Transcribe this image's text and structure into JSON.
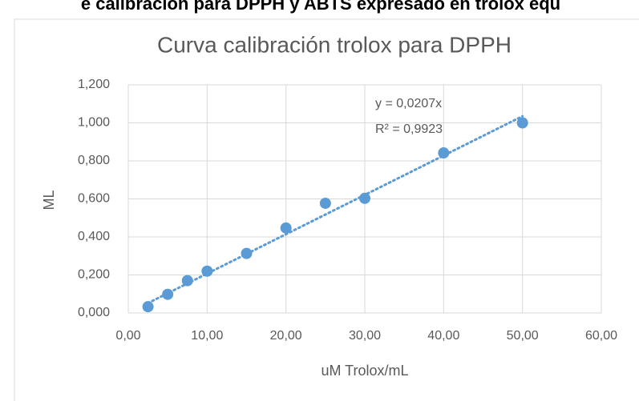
{
  "heading": "e calibración para DPPH y ABTS expresado en trolox equ",
  "chart_data": {
    "type": "scatter",
    "title": "Curva calibración trolox para DPPH",
    "x_label": "uM Trolox/mL",
    "y_label": "ML",
    "color": "#5b9bd5",
    "grid": true,
    "x": [
      2.5,
      5,
      7.5,
      10,
      15,
      20,
      25,
      30,
      40,
      50
    ],
    "values": [
      0.033,
      0.098,
      0.17,
      0.22,
      0.313,
      0.447,
      0.577,
      0.603,
      0.842,
      1.0
    ],
    "xlim": [
      0,
      60
    ],
    "ylim": [
      0,
      1.2
    ],
    "xticks": [
      {
        "value": 0,
        "label": "0,00"
      },
      {
        "value": 10,
        "label": "10,00"
      },
      {
        "value": 20,
        "label": "20,00"
      },
      {
        "value": 30,
        "label": "30,00"
      },
      {
        "value": 40,
        "label": "40,00"
      },
      {
        "value": 50,
        "label": "50,00"
      },
      {
        "value": 60,
        "label": "60,00"
      }
    ],
    "yticks": [
      {
        "value": 0,
        "label": "0,000"
      },
      {
        "value": 0.2,
        "label": "0,200"
      },
      {
        "value": 0.4,
        "label": "0,400"
      },
      {
        "value": 0.6,
        "label": "0,600"
      },
      {
        "value": 0.8,
        "label": "0,800"
      },
      {
        "value": 1.0,
        "label": "1,000"
      },
      {
        "value": 1.2,
        "label": "1,200"
      }
    ],
    "trendline": {
      "slope": 0.0207,
      "equation": "y = 0,0207x",
      "r_squared": "R² = 0,9923"
    }
  }
}
